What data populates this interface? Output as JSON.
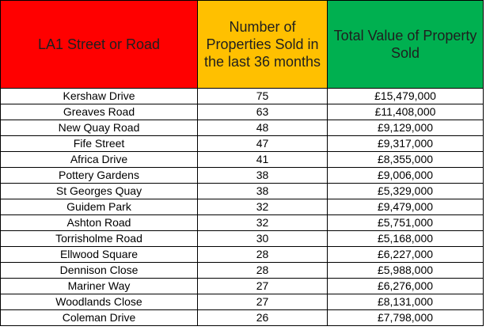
{
  "colors": {
    "header_street": "#ff0000",
    "header_count": "#ffc000",
    "header_value": "#00b050"
  },
  "headers": {
    "street": "LA1 Street or Road",
    "count": "Number of Properties Sold in the last 36 months",
    "value": "Total Value of Property Sold"
  },
  "rows": [
    {
      "street": "Kershaw Drive",
      "count": "75",
      "value": "£15,479,000"
    },
    {
      "street": "Greaves Road",
      "count": "63",
      "value": "£11,408,000"
    },
    {
      "street": "New Quay Road",
      "count": "48",
      "value": "£9,129,000"
    },
    {
      "street": "Fife Street",
      "count": "47",
      "value": "£9,317,000"
    },
    {
      "street": "Africa Drive",
      "count": "41",
      "value": "£8,355,000"
    },
    {
      "street": "Pottery Gardens",
      "count": "38",
      "value": "£9,006,000"
    },
    {
      "street": "St Georges Quay",
      "count": "38",
      "value": "£5,329,000"
    },
    {
      "street": "Guidem Park",
      "count": "32",
      "value": "£9,479,000"
    },
    {
      "street": "Ashton Road",
      "count": "32",
      "value": "£5,751,000"
    },
    {
      "street": "Torrisholme Road",
      "count": "30",
      "value": "£5,168,000"
    },
    {
      "street": "Ellwood Square",
      "count": "28",
      "value": "£6,227,000"
    },
    {
      "street": "Dennison Close",
      "count": "28",
      "value": "£5,988,000"
    },
    {
      "street": "Mariner Way",
      "count": "27",
      "value": "£6,276,000"
    },
    {
      "street": "Woodlands Close",
      "count": "27",
      "value": "£8,131,000"
    },
    {
      "street": "Coleman Drive",
      "count": "26",
      "value": "£7,798,000"
    }
  ]
}
